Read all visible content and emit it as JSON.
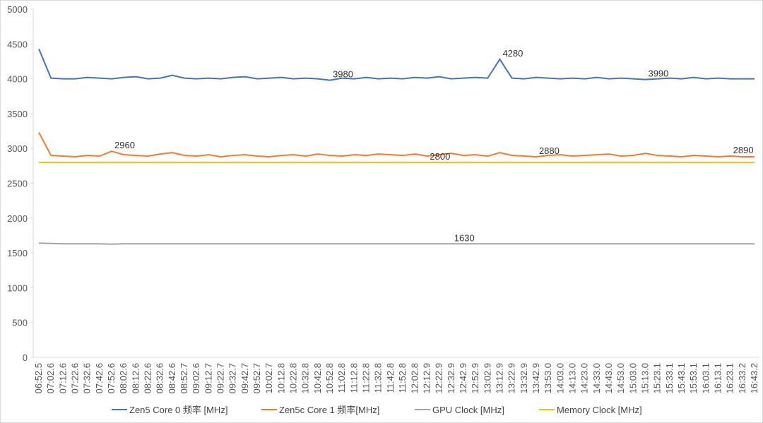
{
  "chart_data": {
    "type": "line",
    "categories": [
      "06:52.5",
      "07:02.6",
      "07:12.6",
      "07:22.6",
      "07:32.6",
      "07:42.6",
      "07:52.6",
      "08:02.6",
      "08:12.6",
      "08:22.6",
      "08:32.6",
      "08:42.6",
      "08:52.7",
      "09:02.6",
      "09:12.7",
      "09:22.7",
      "09:32.7",
      "09:42.7",
      "09:52.7",
      "10:02.7",
      "10:12.8",
      "10:22.8",
      "10:32.8",
      "10:42.8",
      "10:52.8",
      "11:02.8",
      "11:12.8",
      "11:22.8",
      "11:32.8",
      "11:42.8",
      "11:52.8",
      "12:02.8",
      "12:12.9",
      "12:22.9",
      "12:32.9",
      "12:42.9",
      "12:52.9",
      "13:02.9",
      "13:12.9",
      "13:22.9",
      "13:32.9",
      "13:42.9",
      "13:53.0",
      "14:03.0",
      "14:13.0",
      "14:23.0",
      "14:33.0",
      "14:43.0",
      "14:53.0",
      "15:03.0",
      "15:13.0",
      "15:23.1",
      "15:33.1",
      "15:43.1",
      "15:53.1",
      "16:03.1",
      "16:13.1",
      "16:23.1",
      "16:33.2",
      "16:43.2"
    ],
    "series": [
      {
        "name": "Zen5 Core 0 频率  [MHz]",
        "color": "#4472c4",
        "labeled_points": [
          24,
          38,
          50
        ],
        "values": [
          4430,
          4010,
          4000,
          4000,
          4020,
          4010,
          4000,
          4020,
          4030,
          4000,
          4010,
          4050,
          4010,
          4000,
          4010,
          4000,
          4020,
          4030,
          4000,
          4010,
          4020,
          4000,
          4010,
          4000,
          3980,
          4010,
          4000,
          4020,
          4000,
          4010,
          4000,
          4020,
          4010,
          4030,
          4000,
          4010,
          4020,
          4010,
          4280,
          4010,
          4000,
          4020,
          4010,
          4000,
          4010,
          4000,
          4020,
          4000,
          4010,
          4000,
          3990,
          4000,
          4010,
          4000,
          4020,
          4000,
          4010,
          4000,
          4000,
          4000
        ]
      },
      {
        "name": "Zen5c Core 1 频率[MHz]",
        "color": "#ed7d31",
        "labeled_points": [
          6,
          41,
          57
        ],
        "values": [
          3230,
          2900,
          2890,
          2880,
          2900,
          2890,
          2960,
          2910,
          2900,
          2890,
          2920,
          2940,
          2900,
          2890,
          2910,
          2880,
          2900,
          2910,
          2890,
          2880,
          2900,
          2910,
          2890,
          2920,
          2900,
          2890,
          2910,
          2900,
          2920,
          2910,
          2900,
          2920,
          2890,
          2910,
          2930,
          2900,
          2910,
          2890,
          2940,
          2900,
          2890,
          2880,
          2900,
          2910,
          2890,
          2900,
          2910,
          2920,
          2890,
          2900,
          2930,
          2900,
          2890,
          2880,
          2900,
          2890,
          2880,
          2890,
          2880,
          2880
        ]
      },
      {
        "name": "GPU Clock [MHz]",
        "color": "#a5a5a5",
        "labeled_points": [
          34
        ],
        "values": [
          1640,
          1635,
          1630,
          1630,
          1630,
          1630,
          1625,
          1630,
          1630,
          1630,
          1630,
          1630,
          1630,
          1630,
          1630,
          1630,
          1630,
          1630,
          1630,
          1630,
          1630,
          1630,
          1630,
          1630,
          1630,
          1630,
          1630,
          1630,
          1630,
          1630,
          1630,
          1630,
          1630,
          1630,
          1630,
          1630,
          1630,
          1630,
          1630,
          1630,
          1630,
          1630,
          1630,
          1630,
          1630,
          1630,
          1630,
          1630,
          1630,
          1630,
          1630,
          1630,
          1630,
          1630,
          1630,
          1630,
          1630,
          1630,
          1630,
          1630
        ]
      },
      {
        "name": "Memory Clock [MHz]",
        "color": "#ffc000",
        "labeled_points": [
          32
        ],
        "values": [
          2800,
          2800,
          2800,
          2800,
          2800,
          2800,
          2800,
          2800,
          2800,
          2800,
          2800,
          2800,
          2800,
          2800,
          2800,
          2800,
          2800,
          2800,
          2800,
          2800,
          2800,
          2800,
          2800,
          2800,
          2800,
          2800,
          2800,
          2800,
          2800,
          2800,
          2800,
          2800,
          2800,
          2800,
          2800,
          2800,
          2800,
          2800,
          2800,
          2800,
          2800,
          2800,
          2800,
          2800,
          2800,
          2800,
          2800,
          2800,
          2800,
          2800,
          2800,
          2800,
          2800,
          2800,
          2800,
          2800,
          2800,
          2800,
          2800,
          2800
        ]
      }
    ],
    "ylim": [
      0,
      5000
    ],
    "yticks": [
      0,
      500,
      1000,
      1500,
      2000,
      2500,
      3000,
      3500,
      4000,
      4500,
      5000
    ],
    "grid": false
  }
}
